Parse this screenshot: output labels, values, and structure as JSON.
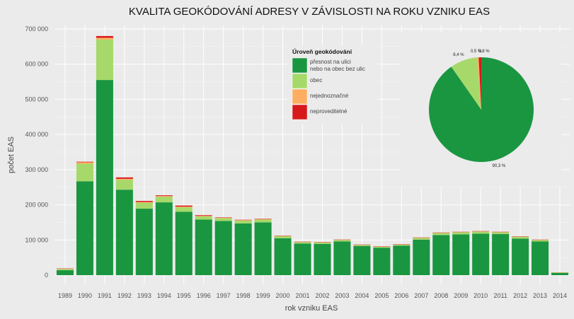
{
  "chart_data": [
    {
      "type": "bar",
      "stacked": true,
      "title": "KVALITA GEOKÓDOVÁNÍ ADRESY V ZÁVISLOSTI NA ROKU VZNIKU EAS",
      "xlabel": "rok vzniku EAS",
      "ylabel": "počet EAS",
      "ylim": [
        0,
        720000
      ],
      "yticks": [
        0,
        100000,
        200000,
        300000,
        400000,
        500000,
        600000,
        700000
      ],
      "ytick_labels": [
        "0",
        "100 000",
        "200 000",
        "300 000",
        "400 000",
        "500 000",
        "600 000",
        "700 000"
      ],
      "grid": true,
      "categories": [
        "1989",
        "1990",
        "1991",
        "1992",
        "1993",
        "1994",
        "1995",
        "1996",
        "1997",
        "1998",
        "1999",
        "2000",
        "2001",
        "2002",
        "2003",
        "2004",
        "2005",
        "2006",
        "2007",
        "2008",
        "2009",
        "2010",
        "2011",
        "2012",
        "2013",
        "2014"
      ],
      "legend": {
        "title": "Úroveň geokódování",
        "position": "top-right",
        "entries": [
          {
            "label_lines": [
              "přesnost na ulici",
              "nebo na obec bez ulic"
            ],
            "color": "#1a9641"
          },
          {
            "label_lines": [
              "obec"
            ],
            "color": "#a6d96a"
          },
          {
            "label_lines": [
              "nejednoznačné"
            ],
            "color": "#fdae61"
          },
          {
            "label_lines": [
              "neproveditelné"
            ],
            "color": "#d7191c"
          }
        ]
      },
      "series": [
        {
          "name": "přesnost na ulici nebo na obec bez ulic",
          "color": "#1a9641",
          "values": [
            14000,
            267000,
            555000,
            243000,
            189000,
            207000,
            180000,
            158000,
            154000,
            147000,
            150000,
            105000,
            90000,
            89000,
            96000,
            83000,
            78000,
            84000,
            101000,
            114000,
            116000,
            118000,
            117000,
            104000,
            96000,
            7000
          ]
        },
        {
          "name": "obec",
          "color": "#a6d96a",
          "values": [
            3500,
            50000,
            115000,
            28000,
            17000,
            16000,
            13000,
            9000,
            8000,
            8000,
            8000,
            6000,
            4000,
            4000,
            4000,
            3000,
            3000,
            3000,
            5000,
            6000,
            6000,
            6000,
            5000,
            5000,
            4000,
            500
          ]
        },
        {
          "name": "nejednoznačné",
          "color": "#fdae61",
          "values": [
            1000,
            4000,
            5000,
            3000,
            2000,
            2000,
            2000,
            1500,
            1500,
            1500,
            1500,
            1000,
            800,
            800,
            800,
            700,
            700,
            700,
            800,
            900,
            900,
            900,
            900,
            800,
            700,
            100
          ]
        },
        {
          "name": "neproveditelné",
          "color": "#d7191c",
          "values": [
            500,
            1500,
            5000,
            4000,
            3000,
            2000,
            3000,
            2000,
            1000,
            1000,
            1000,
            500,
            300,
            300,
            300,
            300,
            300,
            300,
            300,
            300,
            300,
            300,
            300,
            300,
            300,
            0
          ]
        }
      ]
    },
    {
      "type": "pie",
      "slices": [
        {
          "name": "přesnost na ulici nebo na obec bez ulic",
          "value": 90.3,
          "label": "90,3 %",
          "color": "#1a9641"
        },
        {
          "name": "obec",
          "value": 8.4,
          "label": "8,4 %",
          "color": "#a6d96a"
        },
        {
          "name": "nejednoznačné",
          "value": 0.5,
          "label": "0,5 %",
          "color": "#fdae61"
        },
        {
          "name": "neproveditelné",
          "value": 0.8,
          "label": "0,8 %",
          "color": "#d7191c"
        }
      ]
    }
  ]
}
